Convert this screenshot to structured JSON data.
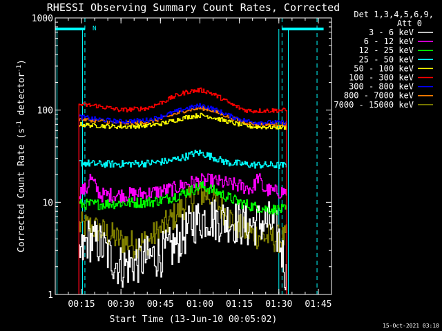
{
  "chart_data": {
    "type": "line",
    "title": "RHESSI Observing Summary Count Rates, Corrected",
    "xlabel": "Start Time (13-Jun-10 00:05:02)",
    "ylabel": "Corrected Count Rate (s⁻¹ detector⁻¹)",
    "ylabel_plain": "Corrected Count Rate (s",
    "ylabel_exp1": "-1",
    "ylabel_mid": " detector",
    "ylabel_exp2": "-1",
    "ylabel_end": ")",
    "yscale": "log",
    "ylim": [
      1,
      1000
    ],
    "xlim_minutes": [
      5.03,
      110
    ],
    "x_ticks": [
      {
        "minute": 15,
        "label": "00:15"
      },
      {
        "minute": 30,
        "label": "00:30"
      },
      {
        "minute": 45,
        "label": "00:45"
      },
      {
        "minute": 60,
        "label": "01:00"
      },
      {
        "minute": 75,
        "label": "01:15"
      },
      {
        "minute": 90,
        "label": "01:30"
      },
      {
        "minute": 105,
        "label": "01:45"
      }
    ],
    "y_ticks": [
      {
        "value": 1,
        "label": "1"
      },
      {
        "value": 10,
        "label": "10"
      },
      {
        "value": 100,
        "label": "100"
      },
      {
        "value": 1000,
        "label": "1000"
      }
    ],
    "legend_header": [
      "Det 1,3,4,5,6,9,",
      "Att 0"
    ],
    "legend_position": "right",
    "series": [
      {
        "name": "3 - 6 keV",
        "color": "#ffffff",
        "noise": 0.55,
        "x": [
          14,
          15.5,
          17,
          22,
          26,
          30,
          35,
          40,
          45,
          50,
          54,
          57,
          60,
          63,
          66,
          70,
          74,
          78,
          82,
          86,
          88,
          90,
          91,
          92,
          93
        ],
        "y": [
          2.5,
          3,
          4,
          3.5,
          2.5,
          2.0,
          2.2,
          2.5,
          2.7,
          3.3,
          4.5,
          6.0,
          6.5,
          7.0,
          6.5,
          6.5,
          6.0,
          5.5,
          6.0,
          6.0,
          5.5,
          4.0,
          3.0,
          2.0,
          1.3
        ]
      },
      {
        "name": "6 - 12 keV",
        "color": "#ff00ff",
        "noise": 0.08,
        "x": [
          14,
          17,
          18,
          22,
          30,
          40,
          50,
          55,
          60,
          65,
          70,
          75,
          80,
          82,
          84,
          88,
          93
        ],
        "y": [
          13,
          14,
          19,
          12,
          12,
          12.5,
          14,
          16,
          17,
          17,
          16,
          15,
          14,
          19,
          14,
          13,
          13
        ]
      },
      {
        "name": "12 - 25 keV",
        "color": "#00ff00",
        "noise": 0.06,
        "x": [
          14,
          20,
          30,
          40,
          45,
          50,
          55,
          58,
          60,
          62,
          65,
          70,
          75,
          80,
          85,
          93
        ],
        "y": [
          9.5,
          9.5,
          9.8,
          10,
          10.5,
          11.5,
          13,
          14,
          15,
          14.5,
          13.5,
          11.5,
          10,
          9,
          8.5,
          8.2
        ]
      },
      {
        "name": "25 - 50 keV",
        "color": "#00ffff",
        "noise": 0.04,
        "x": [
          14,
          20,
          30,
          40,
          48,
          54,
          58,
          60,
          62,
          66,
          70,
          76,
          80,
          93
        ],
        "y": [
          27,
          26,
          26,
          26.5,
          28,
          31,
          34,
          34.5,
          33,
          30,
          27,
          26,
          25.5,
          25
        ]
      },
      {
        "name": "50 - 100 keV",
        "color": "#ffff00",
        "noise": 0.025,
        "x": [
          14,
          20,
          30,
          40,
          45,
          50,
          55,
          60,
          63,
          67,
          72,
          77,
          80,
          93
        ],
        "y": [
          70,
          68,
          66,
          68,
          71,
          77,
          84,
          88,
          86,
          80,
          73,
          68,
          66,
          65
        ]
      },
      {
        "name": "100 - 300 keV",
        "color": "#ff0000",
        "noise": 0.025,
        "x": [
          14,
          20,
          30,
          40,
          45,
          50,
          55,
          60,
          63,
          67,
          72,
          77,
          80,
          93
        ],
        "y": [
          115,
          112,
          100,
          105,
          120,
          140,
          158,
          165,
          158,
          140,
          115,
          100,
          98,
          100
        ]
      },
      {
        "name": "300 - 800 keV",
        "color": "#0000ff",
        "noise": 0.025,
        "x": [
          14,
          20,
          30,
          40,
          45,
          50,
          55,
          60,
          63,
          67,
          72,
          77,
          80,
          93
        ],
        "y": [
          85,
          80,
          75,
          78,
          85,
          95,
          105,
          112,
          108,
          98,
          85,
          77,
          74,
          73
        ]
      },
      {
        "name": "800 - 7000 keV",
        "color": "#ff8000",
        "noise": 0.02,
        "x": [
          14,
          20,
          30,
          40,
          45,
          50,
          55,
          60,
          63,
          67,
          72,
          77,
          80,
          93
        ],
        "y": [
          80,
          77,
          72,
          74,
          80,
          90,
          100,
          105,
          102,
          93,
          82,
          74,
          71,
          70
        ]
      },
      {
        "name": "7000 - 15000 keV",
        "color": "#808000",
        "noise": 0.35,
        "x": [
          14,
          18,
          25,
          30,
          35,
          40,
          45,
          50,
          55,
          58,
          60,
          63,
          66,
          70,
          73,
          76,
          80,
          85,
          90,
          93
        ],
        "y": [
          5.5,
          5.5,
          4.5,
          3.8,
          3.5,
          3.8,
          5.0,
          7.0,
          10.0,
          12.0,
          12.5,
          12.0,
          10.0,
          7.5,
          6.0,
          5.0,
          4.5,
          4.2,
          4.0,
          4.0
        ]
      }
    ],
    "annotations": {
      "n_marker": "N",
      "footer_date": "15-Oct-2021 03:10",
      "attenuator_bars": [
        {
          "from": 5.03,
          "to": 16.3
        },
        {
          "from": 91.2,
          "to": 107
        }
      ],
      "dashed_verticals": [
        16.3,
        91.2,
        104.5
      ],
      "solid_verticals": [
        5.7,
        15.4,
        90,
        93.6
      ]
    }
  }
}
